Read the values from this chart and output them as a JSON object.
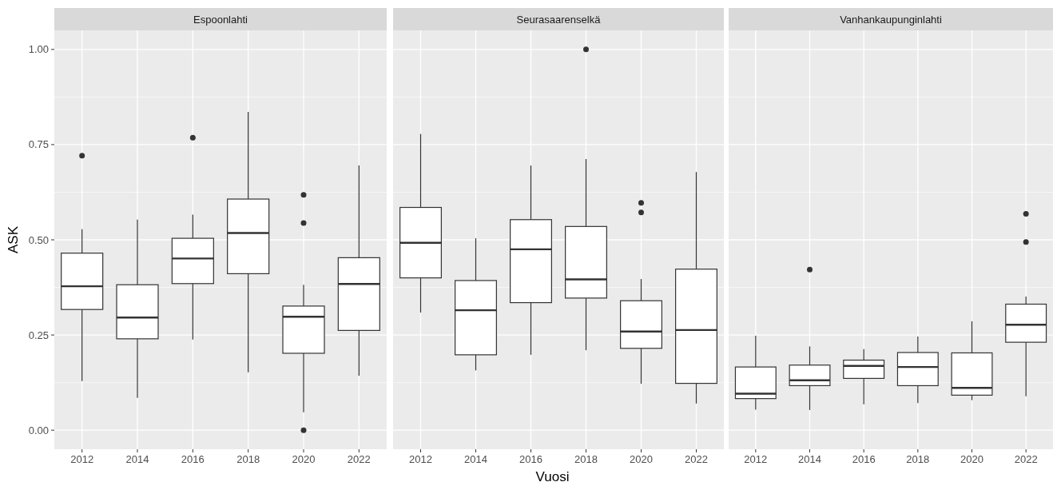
{
  "chart_data": [
    {
      "type": "box",
      "title": "Espoonlahti",
      "ylabel": "ASK",
      "categories": [
        "2012",
        "2014",
        "2016",
        "2018",
        "2020",
        "2022"
      ],
      "ylim": [
        -0.05,
        1.05
      ],
      "yticks": [
        {
          "value": 0,
          "label": "0.00"
        },
        {
          "value": 0.25,
          "label": "0.25"
        },
        {
          "value": 0.5,
          "label": "0.50"
        },
        {
          "value": 0.75,
          "label": "0.75"
        },
        {
          "value": 1,
          "label": "1.00"
        }
      ],
      "grid": true,
      "boxes": [
        {
          "low": 0.129,
          "q1": 0.317,
          "median": 0.378,
          "q3": 0.465,
          "high": 0.528,
          "outliers": [
            0.721
          ]
        },
        {
          "low": 0.085,
          "q1": 0.24,
          "median": 0.296,
          "q3": 0.382,
          "high": 0.553
        },
        {
          "low": 0.238,
          "q1": 0.385,
          "median": 0.451,
          "q3": 0.504,
          "high": 0.566,
          "outliers": [
            0.768
          ]
        },
        {
          "low": 0.152,
          "q1": 0.411,
          "median": 0.518,
          "q3": 0.607,
          "high": 0.836
        },
        {
          "low": 0.047,
          "q1": 0.202,
          "median": 0.298,
          "q3": 0.326,
          "high": 0.382,
          "outliers": [
            0.618,
            0.544,
            0
          ]
        },
        {
          "low": 0.143,
          "q1": 0.262,
          "median": 0.384,
          "q3": 0.453,
          "high": 0.695
        }
      ]
    },
    {
      "type": "box",
      "title": "Seurasaarenselkä",
      "xlabel": "Vuosi",
      "categories": [
        "2012",
        "2014",
        "2016",
        "2018",
        "2020",
        "2022"
      ],
      "ylim": [
        -0.05,
        1.05
      ],
      "yticks": [
        {
          "value": 0,
          "label": null
        },
        {
          "value": 0.25,
          "label": null
        },
        {
          "value": 0.5,
          "label": null
        },
        {
          "value": 0.75,
          "label": null
        },
        {
          "value": 1,
          "label": null
        }
      ],
      "grid": true,
      "tick_labels": "x",
      "boxes": [
        {
          "low": 0.309,
          "q1": 0.4,
          "median": 0.492,
          "q3": 0.585,
          "high": 0.778
        },
        {
          "low": 0.157,
          "q1": 0.198,
          "median": 0.315,
          "q3": 0.393,
          "high": 0.504
        },
        {
          "low": 0.198,
          "q1": 0.335,
          "median": 0.475,
          "q3": 0.553,
          "high": 0.695
        },
        {
          "low": 0.21,
          "q1": 0.347,
          "median": 0.396,
          "q3": 0.535,
          "high": 0.712,
          "outliers": [
            1
          ]
        },
        {
          "low": 0.122,
          "q1": 0.215,
          "median": 0.259,
          "q3": 0.34,
          "high": 0.397,
          "outliers": [
            0.597,
            0.572
          ]
        },
        {
          "low": 0.07,
          "q1": 0.123,
          "median": 0.263,
          "q3": 0.423,
          "high": 0.678
        }
      ]
    },
    {
      "type": "box",
      "title": "Vanhankaupunginlahti",
      "categories": [
        "2012",
        "2014",
        "2016",
        "2018",
        "2020",
        "2022"
      ],
      "ylim": [
        -0.05,
        1.05
      ],
      "yticks": [
        {
          "value": 0,
          "label": null
        },
        {
          "value": 0.25,
          "label": null
        },
        {
          "value": 0.5,
          "label": null
        },
        {
          "value": 0.75,
          "label": null
        },
        {
          "value": 1,
          "label": null
        }
      ],
      "grid": true,
      "tick_labels": "x",
      "boxes": [
        {
          "low": 0.054,
          "q1": 0.083,
          "median": 0.096,
          "q3": 0.166,
          "high": 0.248
        },
        {
          "low": 0.053,
          "q1": 0.117,
          "median": 0.131,
          "q3": 0.171,
          "high": 0.22,
          "outliers": [
            0.422
          ]
        },
        {
          "low": 0.068,
          "q1": 0.136,
          "median": 0.169,
          "q3": 0.184,
          "high": 0.213
        },
        {
          "low": 0.071,
          "q1": 0.117,
          "median": 0.166,
          "q3": 0.204,
          "high": 0.246
        },
        {
          "low": 0.079,
          "q1": 0.092,
          "median": 0.111,
          "q3": 0.203,
          "high": 0.286
        },
        {
          "low": 0.089,
          "q1": 0.231,
          "median": 0.277,
          "q3": 0.331,
          "high": 0.351,
          "outliers": [
            0.568,
            0.494
          ]
        }
      ]
    }
  ]
}
